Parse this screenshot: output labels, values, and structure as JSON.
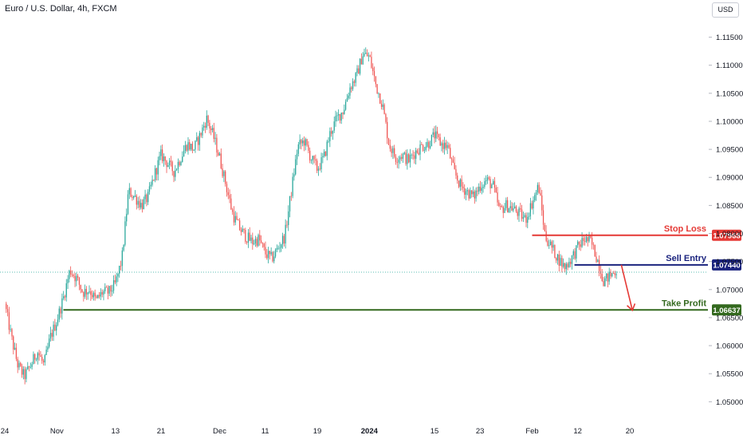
{
  "header": {
    "title": "Euro / U.S. Dollar, 4h, FXCM",
    "currency": "USD"
  },
  "colors": {
    "up": "#26a69a",
    "down": "#ef5350",
    "stop_loss": "#e53935",
    "sell_entry": "#1a237e",
    "take_profit": "#33691e",
    "arrow": "#e53935"
  },
  "chart_data": {
    "type": "candlestick",
    "title": "Euro / U.S. Dollar, 4h, FXCM",
    "ylim": [
      1.0462,
      1.1185
    ],
    "y_ticks": [
      1.05,
      1.055,
      1.06,
      1.065,
      1.07,
      1.075,
      1.08,
      1.085,
      1.09,
      1.095,
      1.1,
      1.105,
      1.11,
      1.115
    ],
    "y_tick_labels": [
      "1.05000",
      "1.05500",
      "1.06000",
      "1.06500",
      "1.07000",
      "1.07500",
      "1.08000",
      "1.08500",
      "1.09000",
      "1.09500",
      "1.10000",
      "1.10500",
      "1.11000",
      "1.11500"
    ],
    "x_ticks": [
      "24",
      "Nov",
      "13",
      "21",
      "Dec",
      "11",
      "19",
      "2024",
      "15",
      "23",
      "Feb",
      "12",
      "20"
    ],
    "x_tick_pos": [
      0,
      8,
      17,
      24,
      33,
      40,
      48,
      56,
      66,
      73,
      81,
      88,
      96
    ],
    "x_range": [
      0,
      108
    ],
    "current_price": 1.0731,
    "trend_path": [
      [
        0,
        1.0675
      ],
      [
        1,
        1.0615
      ],
      [
        2,
        1.0565
      ],
      [
        3,
        1.0545
      ],
      [
        4,
        1.0565
      ],
      [
        5,
        1.059
      ],
      [
        6,
        1.0565
      ],
      [
        7,
        1.0615
      ],
      [
        8,
        1.0645
      ],
      [
        9,
        1.0685
      ],
      [
        10,
        1.0735
      ],
      [
        11,
        1.072
      ],
      [
        12,
        1.0695
      ],
      [
        13,
        1.07
      ],
      [
        14,
        1.068
      ],
      [
        15,
        1.0695
      ],
      [
        16,
        1.0695
      ],
      [
        17,
        1.071
      ],
      [
        18,
        1.0755
      ],
      [
        19,
        1.0875
      ],
      [
        20,
        1.0865
      ],
      [
        21,
        1.085
      ],
      [
        22,
        1.0865
      ],
      [
        23,
        1.0905
      ],
      [
        24,
        1.094
      ],
      [
        25,
        1.0925
      ],
      [
        26,
        1.091
      ],
      [
        27,
        1.0935
      ],
      [
        28,
        1.096
      ],
      [
        29,
        1.095
      ],
      [
        30,
        1.0975
      ],
      [
        31,
        1.1005
      ],
      [
        32,
        1.0975
      ],
      [
        33,
        1.0935
      ],
      [
        34,
        1.0885
      ],
      [
        35,
        1.0835
      ],
      [
        36,
        1.081
      ],
      [
        37,
        1.0795
      ],
      [
        38,
        1.0785
      ],
      [
        39,
        1.079
      ],
      [
        40,
        1.0765
      ],
      [
        41,
        1.0755
      ],
      [
        42,
        1.0775
      ],
      [
        43,
        1.0795
      ],
      [
        44,
        1.0875
      ],
      [
        45,
        1.0955
      ],
      [
        46,
        1.0965
      ],
      [
        47,
        1.0935
      ],
      [
        48,
        1.0915
      ],
      [
        49,
        1.0935
      ],
      [
        50,
        1.098
      ],
      [
        51,
        1.1005
      ],
      [
        52,
        1.102
      ],
      [
        53,
        1.106
      ],
      [
        54,
        1.108
      ],
      [
        55,
        1.112
      ],
      [
        56,
        1.1115
      ],
      [
        57,
        1.1065
      ],
      [
        58,
        1.103
      ],
      [
        59,
        1.096
      ],
      [
        60,
        1.0935
      ],
      [
        61,
        1.094
      ],
      [
        62,
        1.093
      ],
      [
        63,
        1.0945
      ],
      [
        64,
        1.0955
      ],
      [
        65,
        1.096
      ],
      [
        66,
        1.0975
      ],
      [
        67,
        1.096
      ],
      [
        68,
        1.0955
      ],
      [
        69,
        1.091
      ],
      [
        70,
        1.0885
      ],
      [
        71,
        1.0875
      ],
      [
        72,
        1.0865
      ],
      [
        73,
        1.0885
      ],
      [
        74,
        1.0895
      ],
      [
        75,
        1.0885
      ],
      [
        76,
        1.084
      ],
      [
        77,
        1.085
      ],
      [
        78,
        1.0845
      ],
      [
        79,
        1.0835
      ],
      [
        80,
        1.0825
      ],
      [
        81,
        1.0855
      ],
      [
        82,
        1.0885
      ],
      [
        83,
        1.0795
      ],
      [
        84,
        1.0775
      ],
      [
        85,
        1.0755
      ],
      [
        86,
        1.074
      ],
      [
        87,
        1.0755
      ],
      [
        88,
        1.0775
      ],
      [
        89,
        1.079
      ],
      [
        90,
        1.0785
      ],
      [
        91,
        1.0755
      ],
      [
        92,
        1.0715
      ],
      [
        93,
        1.0725
      ],
      [
        94,
        1.0735
      ]
    ],
    "levels": [
      {
        "name": "Stop Loss",
        "value": "1.07968",
        "price": 1.07968,
        "x_start": 81,
        "color": "#e53935"
      },
      {
        "name": "Sell Entry",
        "value": "1.07440",
        "price": 1.0744,
        "x_start": 87.5,
        "color": "#1a237e"
      },
      {
        "name": "Take Profit",
        "value": "1.06637",
        "price": 1.06637,
        "x_start": 9,
        "color": "#33691e"
      }
    ],
    "projection": {
      "from": [
        94.7,
        1.0744
      ],
      "to": [
        96.4,
        1.0663
      ]
    }
  }
}
